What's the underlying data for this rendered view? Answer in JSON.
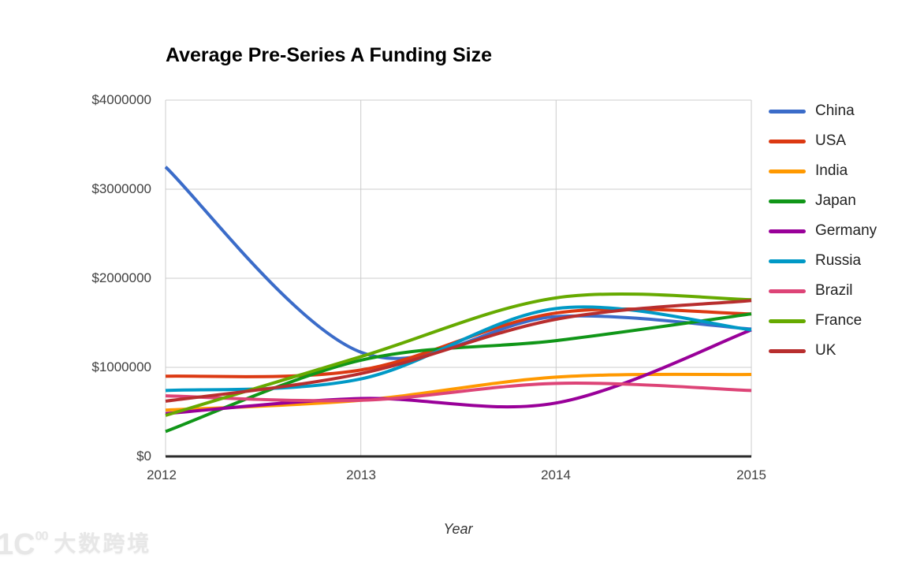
{
  "chart_data": {
    "type": "line",
    "title": "Average Pre-Series A Funding Size",
    "xlabel": "Year",
    "ylabel": "",
    "curve": "smooth",
    "grid": true,
    "legend_position": "right",
    "x": [
      2012,
      2013,
      2014,
      2015
    ],
    "x_tick_labels": [
      "2012",
      "2013",
      "2014",
      "2015"
    ],
    "y_tick_labels": [
      "$0",
      "$1000000",
      "$2000000",
      "$3000000",
      "$4000000"
    ],
    "ylim": [
      0,
      4000000
    ],
    "y_tick_values": [
      0,
      1000000,
      2000000,
      3000000,
      4000000
    ],
    "series": [
      {
        "name": "China",
        "color": "#3B6CC9",
        "values": [
          3250000,
          1170000,
          1570000,
          1430000
        ]
      },
      {
        "name": "USA",
        "color": "#DC3912",
        "values": [
          900000,
          970000,
          1610000,
          1600000
        ]
      },
      {
        "name": "India",
        "color": "#FF9900",
        "values": [
          520000,
          630000,
          890000,
          920000
        ]
      },
      {
        "name": "Japan",
        "color": "#109618",
        "values": [
          280000,
          1080000,
          1300000,
          1600000
        ]
      },
      {
        "name": "Germany",
        "color": "#990099",
        "values": [
          480000,
          650000,
          600000,
          1420000
        ]
      },
      {
        "name": "Russia",
        "color": "#0099C6",
        "values": [
          740000,
          870000,
          1660000,
          1420000
        ]
      },
      {
        "name": "Brazil",
        "color": "#DD4477",
        "values": [
          680000,
          630000,
          820000,
          740000
        ]
      },
      {
        "name": "France",
        "color": "#66AA00",
        "values": [
          460000,
          1120000,
          1780000,
          1760000
        ]
      },
      {
        "name": "UK",
        "color": "#B82E2E",
        "values": [
          620000,
          930000,
          1540000,
          1750000
        ]
      }
    ]
  },
  "watermark": {
    "logo_big": "1Ϲ",
    "logo_sup": "00",
    "cn_text": "大数跨境"
  },
  "colors": {
    "gridline": "#cccccc",
    "axis_line": "#2b2b2b",
    "tick_text": "#404040"
  }
}
